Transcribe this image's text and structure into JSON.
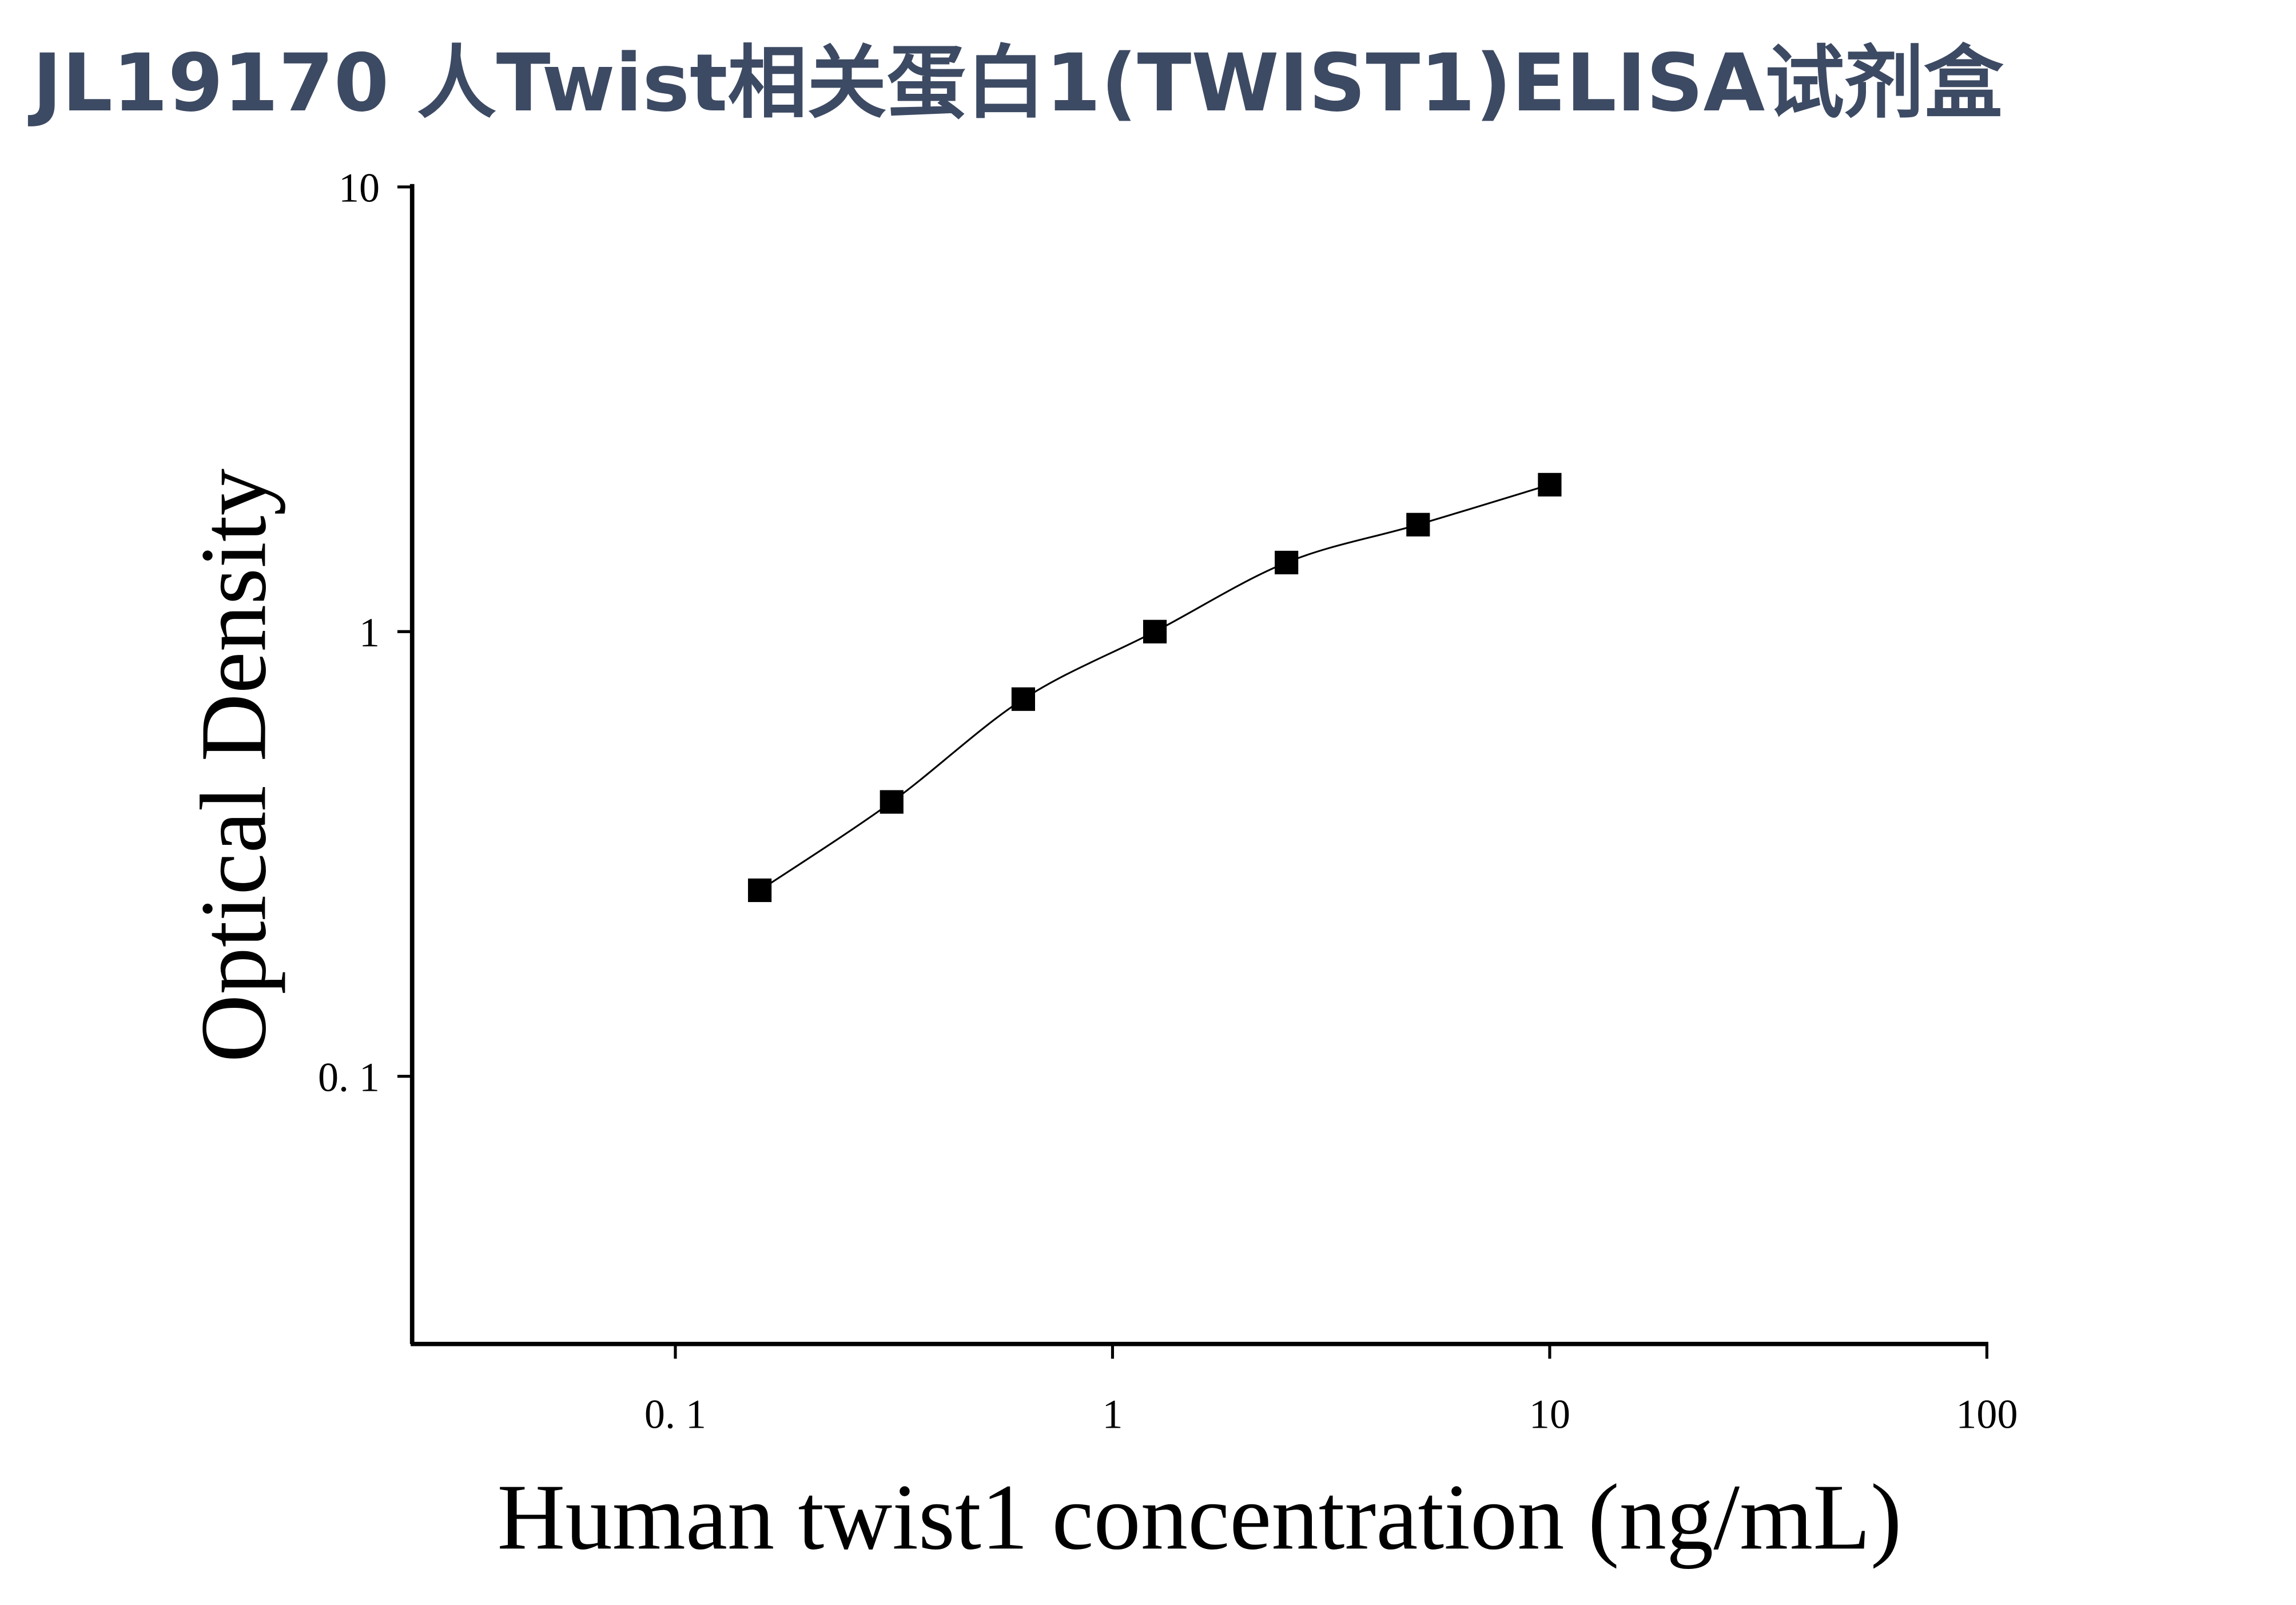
{
  "chart_data": {
    "type": "scatter-line",
    "title": "JL19170 人Twist相关蛋白1(TWIST1)ELISA试剂盒",
    "x_label": "Human twist1 concentration (ng/mL)",
    "y_label": "Optical Density",
    "x": [
      0.156,
      0.3125,
      0.625,
      1.25,
      2.5,
      5,
      10
    ],
    "series": [
      {
        "color": "#000000",
        "values": [
          0.262,
          0.414,
          0.705,
          1.0,
          1.43,
          1.74,
          2.14
        ]
      }
    ],
    "xlim": [
      0.025,
      100
    ],
    "ylim": [
      0.025,
      10
    ],
    "xticks": [
      {
        "value": 0.1,
        "label": "0. 1"
      },
      1,
      10,
      100
    ],
    "yticks": [
      {
        "value": 0.1,
        "label": "0. 1"
      },
      1,
      10
    ],
    "xscale": "log",
    "yscale": "log",
    "grid": false
  }
}
